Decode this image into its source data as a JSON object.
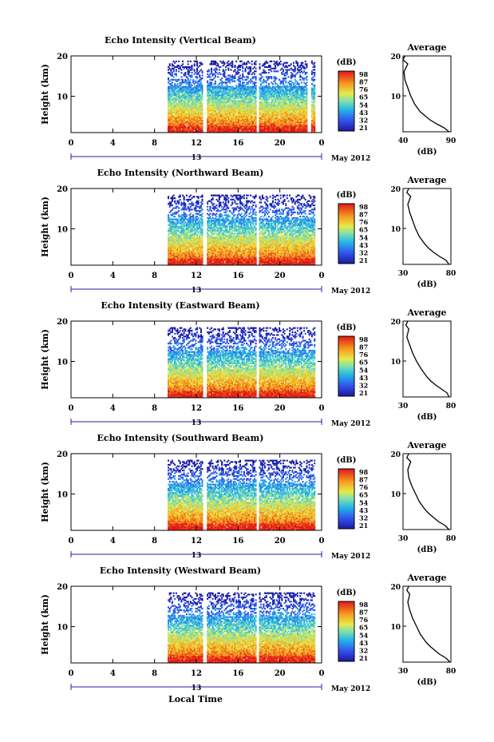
{
  "figure": {
    "x_axis_label": "Local Time",
    "date_label": "May 2012",
    "x_sub_label": "13",
    "colorbar_unit": "(dB)",
    "avg_title": "Average",
    "avg_xlabel": "(dB)"
  },
  "chart_data": [
    {
      "type": "heatmap",
      "title": "Echo Intensity (Vertical Beam)",
      "ylabel": "Height (km)",
      "xlim": [
        0,
        24
      ],
      "ylim": [
        1,
        20
      ],
      "x_ticks": [
        "0",
        "4",
        "8",
        "12",
        "16",
        "20",
        "0"
      ],
      "y_ticks": [
        "20",
        "10"
      ],
      "colorbar": {
        "unit": "(dB)",
        "ticks": [
          "98",
          "87",
          "76",
          "65",
          "54",
          "43",
          "32",
          "21"
        ],
        "range": [
          21,
          98
        ]
      },
      "data_gaps_hours": [
        [
          0,
          9.3
        ],
        [
          12.6,
          13.0
        ],
        [
          17.7,
          18.0
        ],
        [
          22.6,
          23.0
        ],
        [
          23.4,
          24
        ]
      ],
      "average_profile": {
        "title": "Average",
        "xlabel": "(dB)",
        "xlim": [
          40,
          90
        ],
        "x_ticks": [
          "40",
          "90"
        ],
        "y_ticks": [
          "20",
          "10"
        ],
        "height_km": [
          1,
          2,
          3,
          4,
          5,
          6,
          8,
          10,
          12,
          14,
          16,
          18,
          19,
          20
        ],
        "db": [
          88,
          83,
          75,
          68,
          63,
          58,
          52,
          48,
          45,
          42,
          41,
          45,
          40,
          42
        ]
      }
    },
    {
      "type": "heatmap",
      "title": "Echo Intensity (Northward Beam)",
      "ylabel": "Height (km)",
      "xlim": [
        0,
        24
      ],
      "ylim": [
        1,
        20
      ],
      "x_ticks": [
        "0",
        "4",
        "8",
        "12",
        "16",
        "20",
        "0"
      ],
      "y_ticks": [
        "20",
        "10"
      ],
      "colorbar": {
        "unit": "(dB)",
        "ticks": [
          "98",
          "87",
          "76",
          "65",
          "54",
          "43",
          "32",
          "21"
        ],
        "range": [
          21,
          98
        ]
      },
      "data_gaps_hours": [
        [
          0,
          9.3
        ],
        [
          12.6,
          13.0
        ],
        [
          17.7,
          18.0
        ],
        [
          23.4,
          24
        ]
      ],
      "average_profile": {
        "title": "Average",
        "xlabel": "(dB)",
        "xlim": [
          30,
          80
        ],
        "x_ticks": [
          "30",
          "80"
        ],
        "y_ticks": [
          "20",
          "10"
        ],
        "height_km": [
          1,
          2,
          3,
          4,
          5,
          6,
          8,
          10,
          12,
          14,
          16,
          18,
          19,
          20
        ],
        "db": [
          78,
          75,
          68,
          62,
          57,
          53,
          47,
          43,
          40,
          37,
          35,
          38,
          34,
          36
        ]
      }
    },
    {
      "type": "heatmap",
      "title": "Echo Intensity (Eastward Beam)",
      "ylabel": "Height (km)",
      "xlim": [
        0,
        24
      ],
      "ylim": [
        1,
        20
      ],
      "x_ticks": [
        "0",
        "4",
        "8",
        "12",
        "16",
        "20",
        "0"
      ],
      "y_ticks": [
        "20",
        "10"
      ],
      "colorbar": {
        "unit": "(dB)",
        "ticks": [
          "98",
          "87",
          "76",
          "65",
          "54",
          "43",
          "32",
          "21"
        ],
        "range": [
          21,
          98
        ]
      },
      "data_gaps_hours": [
        [
          0,
          9.3
        ],
        [
          12.6,
          13.0
        ],
        [
          17.7,
          18.0
        ],
        [
          23.4,
          24
        ]
      ],
      "average_profile": {
        "title": "Average",
        "xlabel": "(dB)",
        "xlim": [
          30,
          80
        ],
        "x_ticks": [
          "30",
          "80"
        ],
        "y_ticks": [
          "20",
          "10"
        ],
        "height_km": [
          1,
          2,
          3,
          4,
          5,
          6,
          8,
          10,
          12,
          14,
          16,
          18,
          19,
          20
        ],
        "db": [
          78,
          76,
          70,
          64,
          59,
          55,
          49,
          44,
          40,
          37,
          34,
          36,
          33,
          35
        ]
      }
    },
    {
      "type": "heatmap",
      "title": "Echo Intensity (Southward Beam)",
      "ylabel": "Height (km)",
      "xlim": [
        0,
        24
      ],
      "ylim": [
        1,
        20
      ],
      "x_ticks": [
        "0",
        "4",
        "8",
        "12",
        "16",
        "20",
        "0"
      ],
      "y_ticks": [
        "20",
        "10"
      ],
      "colorbar": {
        "unit": "(dB)",
        "ticks": [
          "98",
          "87",
          "76",
          "65",
          "54",
          "43",
          "32",
          "21"
        ],
        "range": [
          21,
          98
        ]
      },
      "data_gaps_hours": [
        [
          0,
          9.3
        ],
        [
          12.6,
          13.0
        ],
        [
          17.7,
          18.0
        ],
        [
          23.4,
          24
        ]
      ],
      "average_profile": {
        "title": "Average",
        "xlabel": "(dB)",
        "xlim": [
          30,
          80
        ],
        "x_ticks": [
          "30",
          "80"
        ],
        "y_ticks": [
          "20",
          "10"
        ],
        "height_km": [
          1,
          2,
          3,
          4,
          5,
          6,
          8,
          10,
          12,
          14,
          16,
          18,
          19,
          20
        ],
        "db": [
          78,
          74,
          67,
          62,
          57,
          53,
          47,
          43,
          39,
          36,
          35,
          38,
          34,
          36
        ]
      }
    },
    {
      "type": "heatmap",
      "title": "Echo Intensity (Westward Beam)",
      "ylabel": "Height (km)",
      "xlim": [
        0,
        24
      ],
      "ylim": [
        1,
        20
      ],
      "x_ticks": [
        "0",
        "4",
        "8",
        "12",
        "16",
        "20",
        "0"
      ],
      "y_ticks": [
        "20",
        "10"
      ],
      "colorbar": {
        "unit": "(dB)",
        "ticks": [
          "98",
          "87",
          "76",
          "65",
          "54",
          "43",
          "32",
          "21"
        ],
        "range": [
          21,
          98
        ]
      },
      "data_gaps_hours": [
        [
          0,
          9.3
        ],
        [
          12.6,
          13.0
        ],
        [
          17.7,
          18.0
        ],
        [
          23.4,
          24
        ]
      ],
      "average_profile": {
        "title": "Average",
        "xlabel": "(dB)",
        "xlim": [
          30,
          80
        ],
        "x_ticks": [
          "30",
          "80"
        ],
        "y_ticks": [
          "20",
          "10"
        ],
        "height_km": [
          1,
          2,
          3,
          4,
          5,
          6,
          8,
          10,
          12,
          14,
          16,
          18,
          19,
          20
        ],
        "db": [
          79,
          75,
          68,
          63,
          58,
          54,
          48,
          44,
          40,
          37,
          35,
          37,
          34,
          36
        ]
      }
    }
  ]
}
